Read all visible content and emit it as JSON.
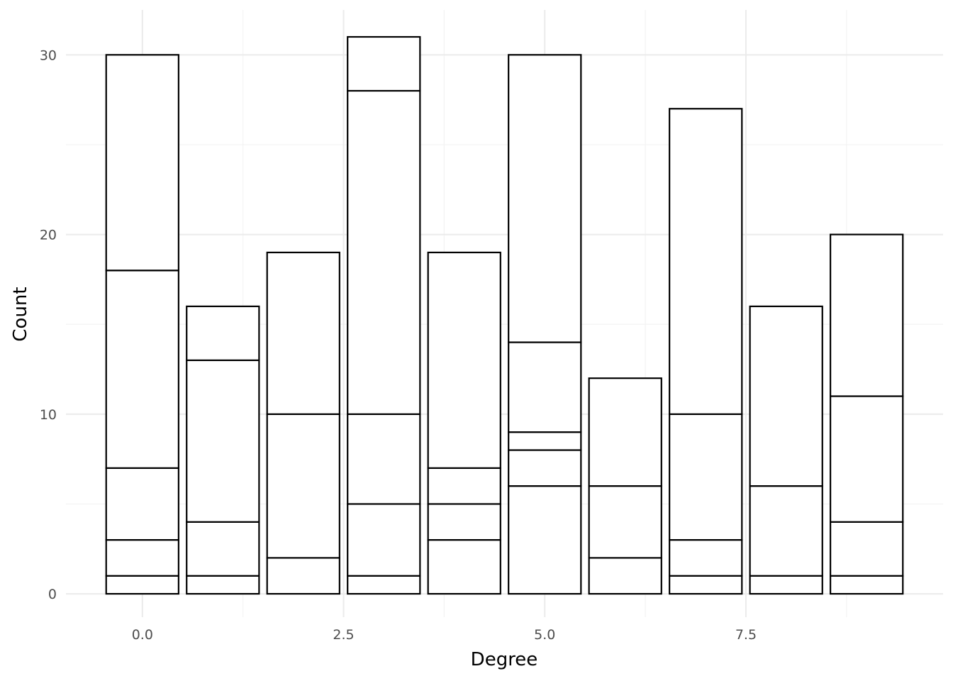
{
  "chart_data": {
    "type": "bar",
    "stacked": true,
    "xlabel": "Degree",
    "ylabel": "Count",
    "xlim": [
      -0.95,
      9.95
    ],
    "ylim": [
      -1.3,
      32.5
    ],
    "x_ticks": [
      0.0,
      2.5,
      5.0,
      7.5
    ],
    "x_tick_labels": [
      "0.0",
      "2.5",
      "5.0",
      "7.5"
    ],
    "y_ticks": [
      0,
      10,
      20,
      30
    ],
    "y_tick_labels": [
      "0",
      "10",
      "20",
      "30"
    ],
    "grid": true,
    "fill_color": "#ffffff",
    "edge_color": "#000000",
    "bars": [
      {
        "x": 0,
        "total": 30,
        "boundaries": [
          1,
          3,
          7,
          18,
          30
        ]
      },
      {
        "x": 1,
        "total": 16,
        "boundaries": [
          1,
          4,
          13,
          16
        ]
      },
      {
        "x": 2,
        "total": 19,
        "boundaries": [
          2,
          10,
          19
        ]
      },
      {
        "x": 3,
        "total": 31,
        "boundaries": [
          1,
          5,
          10,
          28,
          31
        ]
      },
      {
        "x": 4,
        "total": 19,
        "boundaries": [
          3,
          5,
          7,
          19
        ]
      },
      {
        "x": 5,
        "total": 30,
        "boundaries": [
          6,
          8,
          9,
          14,
          30
        ]
      },
      {
        "x": 6,
        "total": 12,
        "boundaries": [
          2,
          6,
          12
        ]
      },
      {
        "x": 7,
        "total": 27,
        "boundaries": [
          1,
          3,
          10,
          27
        ]
      },
      {
        "x": 8,
        "total": 16,
        "boundaries": [
          1,
          6,
          16
        ]
      },
      {
        "x": 9,
        "total": 20,
        "boundaries": [
          1,
          4,
          11,
          20
        ]
      }
    ]
  }
}
